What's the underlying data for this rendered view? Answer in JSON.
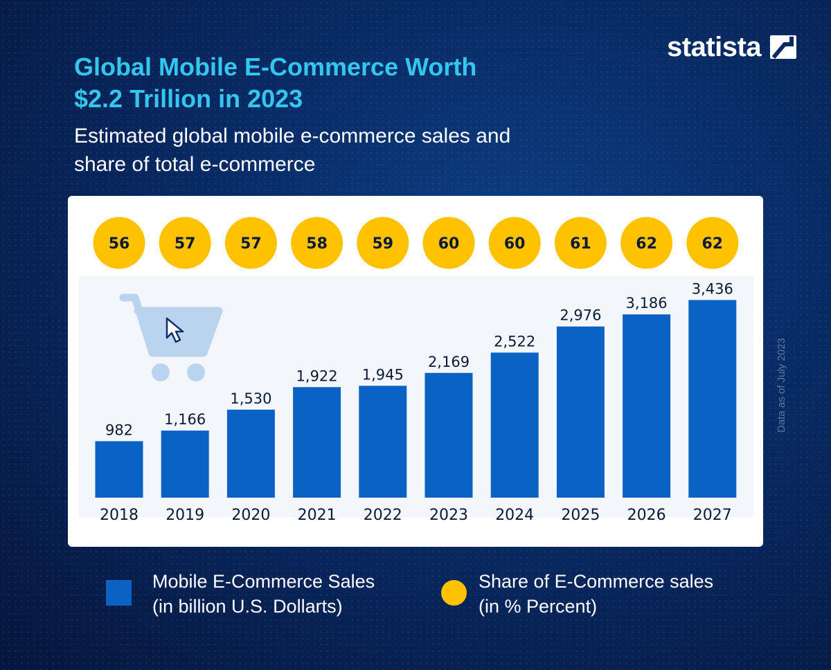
{
  "title_lines": [
    "Global Mobile E-Commerce Worth",
    "$2.2 Trillion in 2023"
  ],
  "subtitle_lines": [
    "Estimated global mobile e-commerce sales and",
    "share of total e-commerce"
  ],
  "brand": {
    "name": "statista"
  },
  "side_note": "Data as of July 2023",
  "colors": {
    "bar": "#0a63c4",
    "share_circle": "#ffc200",
    "title": "#35c6f0",
    "background": "#082a63",
    "cart": "#bad3ee"
  },
  "icons": {
    "illustration": "shopping-cart-icon",
    "pointer": "cursor-arrow-icon",
    "logo": "statista-logo-icon"
  },
  "legend": {
    "bar": {
      "line1": "Mobile E-Commerce Sales",
      "line2": "(in billion U.S. Dollarts)"
    },
    "share": {
      "line1": "Share of E-Commerce sales",
      "line2": "(in % Percent)"
    }
  },
  "chart_data": {
    "type": "bar",
    "categories": [
      "2018",
      "2019",
      "2020",
      "2021",
      "2022",
      "2023",
      "2024",
      "2025",
      "2026",
      "2027"
    ],
    "series": [
      {
        "values": [
          982,
          1166,
          1530,
          1922,
          1945,
          2169,
          2522,
          2976,
          3186,
          3436
        ],
        "labels": [
          "982",
          "1,166",
          "1,530",
          "1,922",
          "1,945",
          "2,169",
          "2,522",
          "2,976",
          "3,186",
          "3,436"
        ]
      },
      {
        "values": [
          56,
          57,
          57,
          58,
          59,
          60,
          60,
          61,
          62,
          62
        ]
      }
    ],
    "grid": false
  }
}
